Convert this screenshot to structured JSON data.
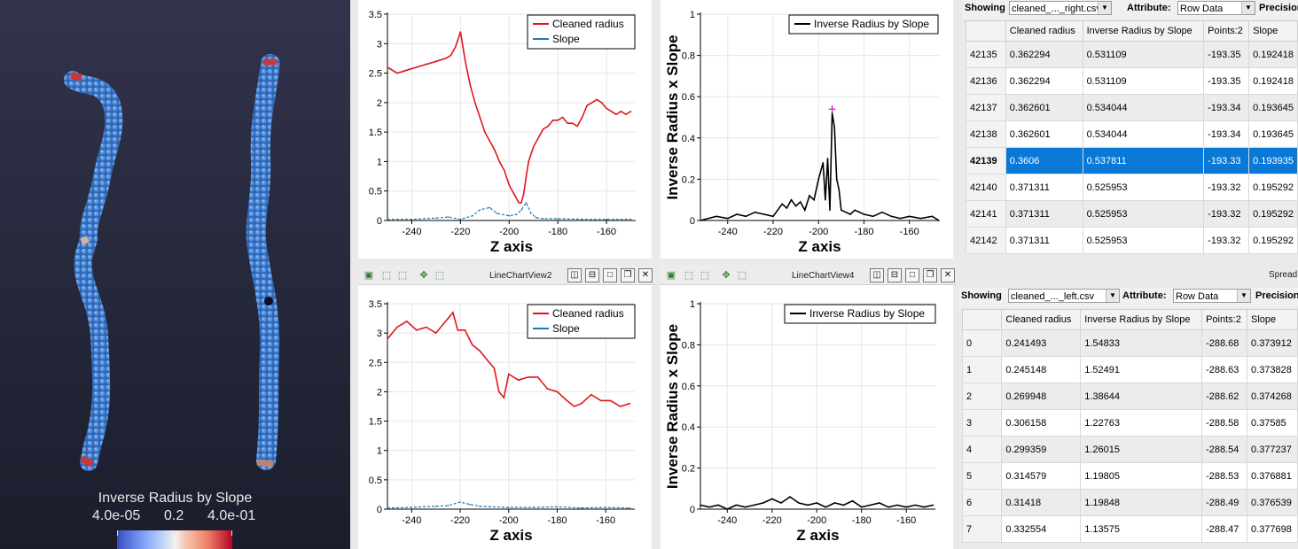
{
  "render_view": {
    "colorbar": {
      "title": "Inverse Radius by Slope",
      "ticks": [
        "4.0e-05",
        "0.2",
        "4.0e-01"
      ]
    }
  },
  "colors": {
    "red_series": "#e0161c",
    "blue_series": "#1f77b4",
    "black_series": "#000000",
    "selection": "#0a78d7",
    "marker": "#e000e0"
  },
  "toolbar_left": {
    "title": "LineChartView2"
  },
  "toolbar_right": {
    "title": "LineChartView4"
  },
  "toolbar_icons": [
    "camera-icon",
    "select-icon",
    "select-points-icon",
    "zoom-icon",
    "clear-selection-icon"
  ],
  "toolbar_buttons": [
    "split-horizontal-icon",
    "split-vertical-icon",
    "maximize-icon",
    "restore-icon",
    "close-icon"
  ],
  "spread_label": "Spread",
  "sheet_top": {
    "showing_label": "Showing",
    "file": "cleaned_..._right.csv",
    "attribute_label": "Attribute:",
    "attribute_value": "Row Data",
    "precision_label": "Precision",
    "columns": [
      "Cleaned radius",
      "Inverse Radius by Slope",
      "Points:2",
      "Slope"
    ],
    "rows": [
      {
        "id": "42135",
        "cells": [
          "0.362294",
          "0.531109",
          "-193.35",
          "0.192418"
        ]
      },
      {
        "id": "42136",
        "cells": [
          "0.362294",
          "0.531109",
          "-193.35",
          "0.192418"
        ]
      },
      {
        "id": "42137",
        "cells": [
          "0.362601",
          "0.534044",
          "-193.34",
          "0.193645"
        ]
      },
      {
        "id": "42138",
        "cells": [
          "0.362601",
          "0.534044",
          "-193.34",
          "0.193645"
        ]
      },
      {
        "id": "42139",
        "cells": [
          "0.3606",
          "0.537811",
          "-193.33",
          "0.193935"
        ]
      },
      {
        "id": "42140",
        "cells": [
          "0.371311",
          "0.525953",
          "-193.32",
          "0.195292"
        ]
      },
      {
        "id": "42141",
        "cells": [
          "0.371311",
          "0.525953",
          "-193.32",
          "0.195292"
        ]
      },
      {
        "id": "42142",
        "cells": [
          "0.371311",
          "0.525953",
          "-193.32",
          "0.195292"
        ]
      }
    ],
    "selected_row": "42139"
  },
  "sheet_bottom": {
    "showing_label": "Showing",
    "file": "cleaned_..._left.csv",
    "attribute_label": "Attribute:",
    "attribute_value": "Row Data",
    "precision_label": "Precision",
    "columns": [
      "Cleaned radius",
      "Inverse Radius by Slope",
      "Points:2",
      "Slope"
    ],
    "rows": [
      {
        "id": "0",
        "cells": [
          "0.241493",
          "1.54833",
          "-288.68",
          "0.373912"
        ]
      },
      {
        "id": "1",
        "cells": [
          "0.245148",
          "1.52491",
          "-288.63",
          "0.373828"
        ]
      },
      {
        "id": "2",
        "cells": [
          "0.269948",
          "1.38644",
          "-288.62",
          "0.374268"
        ]
      },
      {
        "id": "3",
        "cells": [
          "0.306158",
          "1.22763",
          "-288.58",
          "0.37585"
        ]
      },
      {
        "id": "4",
        "cells": [
          "0.299359",
          "1.26015",
          "-288.54",
          "0.377237"
        ]
      },
      {
        "id": "5",
        "cells": [
          "0.314579",
          "1.19805",
          "-288.53",
          "0.376881"
        ]
      },
      {
        "id": "6",
        "cells": [
          "0.31418",
          "1.19848",
          "-288.49",
          "0.376539"
        ]
      },
      {
        "id": "7",
        "cells": [
          "0.332554",
          "1.13575",
          "-288.47",
          "0.377698"
        ]
      }
    ]
  },
  "chart_data": [
    {
      "type": "line",
      "xlabel": "Z axis",
      "ylabel": "",
      "xlim": [
        -250,
        -148
      ],
      "ylim": [
        0,
        3.5
      ],
      "xticks": [
        -240,
        -220,
        -200,
        -180,
        -160
      ],
      "yticks": [
        0,
        0.5,
        1,
        1.5,
        2,
        2.5,
        3,
        3.5
      ],
      "grid": true,
      "legend": "top-right",
      "series": [
        {
          "name": "Cleaned radius",
          "color": "#e0161c",
          "x": [
            -250,
            -246,
            -242,
            -238,
            -234,
            -230,
            -226,
            -224,
            -222,
            -220,
            -218,
            -216,
            -214,
            -212,
            -210,
            -208,
            -206,
            -204,
            -202,
            -200,
            -198,
            -196,
            -195,
            -194,
            -193,
            -192,
            -190,
            -188,
            -186,
            -184,
            -182,
            -180,
            -178,
            -176,
            -174,
            -172,
            -170,
            -168,
            -166,
            -164,
            -162,
            -160,
            -158,
            -156,
            -154,
            -152,
            -150
          ],
          "y": [
            2.6,
            2.5,
            2.55,
            2.6,
            2.65,
            2.7,
            2.75,
            2.8,
            2.95,
            3.2,
            2.7,
            2.3,
            2.0,
            1.75,
            1.5,
            1.35,
            1.2,
            1.0,
            0.85,
            0.6,
            0.45,
            0.3,
            0.3,
            0.45,
            0.75,
            1.0,
            1.25,
            1.4,
            1.55,
            1.6,
            1.7,
            1.7,
            1.75,
            1.65,
            1.65,
            1.6,
            1.75,
            1.95,
            2.0,
            2.05,
            2.0,
            1.9,
            1.85,
            1.8,
            1.85,
            1.8,
            1.85
          ]
        },
        {
          "name": "Slope",
          "color": "#1f77b4",
          "x": [
            -250,
            -240,
            -230,
            -225,
            -220,
            -215,
            -212,
            -208,
            -205,
            -200,
            -197,
            -195,
            -193,
            -191,
            -189,
            -186,
            -180,
            -170,
            -160,
            -150
          ],
          "y": [
            0.02,
            0.02,
            0.04,
            0.06,
            0.02,
            0.08,
            0.18,
            0.22,
            0.12,
            0.08,
            0.1,
            0.18,
            0.3,
            0.12,
            0.05,
            0.03,
            0.03,
            0.02,
            0.02,
            0.02
          ]
        }
      ]
    },
    {
      "type": "line",
      "xlabel": "Z axis",
      "ylabel": "Inverse Radius x Slope",
      "xlim": [
        -252,
        -147
      ],
      "ylim": [
        0,
        1
      ],
      "xticks": [
        -240,
        -220,
        -200,
        -180,
        -160
      ],
      "yticks": [
        0,
        0.2,
        0.4,
        0.6,
        0.8,
        1
      ],
      "grid": true,
      "legend": "top-right",
      "series": [
        {
          "name": "Inverse Radius by Slope",
          "color": "#000000",
          "x": [
            -252,
            -245,
            -240,
            -236,
            -232,
            -228,
            -224,
            -220,
            -218,
            -216,
            -214,
            -212,
            -210,
            -208,
            -206,
            -204,
            -202,
            -200,
            -198,
            -197,
            -196,
            -195,
            -194,
            -193,
            -192,
            -191,
            -190,
            -188,
            -186,
            -184,
            -180,
            -176,
            -172,
            -168,
            -164,
            -160,
            -155,
            -150,
            -147
          ],
          "y": [
            0.0,
            0.02,
            0.01,
            0.03,
            0.02,
            0.04,
            0.03,
            0.02,
            0.05,
            0.08,
            0.06,
            0.1,
            0.07,
            0.09,
            0.05,
            0.12,
            0.1,
            0.2,
            0.28,
            0.1,
            0.3,
            0.05,
            0.52,
            0.45,
            0.2,
            0.15,
            0.05,
            0.04,
            0.03,
            0.05,
            0.03,
            0.02,
            0.04,
            0.02,
            0.01,
            0.02,
            0.01,
            0.02,
            0.0
          ]
        }
      ],
      "marker": {
        "x": -194,
        "y": 0.54
      }
    },
    {
      "type": "line",
      "xlabel": "Z axis",
      "ylabel": "",
      "xlim": [
        -250,
        -148
      ],
      "ylim": [
        0,
        3.5
      ],
      "xticks": [
        -240,
        -220,
        -200,
        -180,
        -160
      ],
      "yticks": [
        0,
        0.5,
        1,
        1.5,
        2,
        2.5,
        3,
        3.5
      ],
      "grid": true,
      "legend": "top-right",
      "series": [
        {
          "name": "Cleaned radius",
          "color": "#e0161c",
          "x": [
            -250,
            -246,
            -242,
            -238,
            -234,
            -230,
            -226,
            -223,
            -221,
            -218,
            -215,
            -212,
            -209,
            -206,
            -204,
            -202,
            -200,
            -196,
            -192,
            -188,
            -184,
            -180,
            -176,
            -173,
            -170,
            -166,
            -162,
            -158,
            -154,
            -150
          ],
          "y": [
            2.9,
            3.1,
            3.2,
            3.05,
            3.1,
            3.0,
            3.2,
            3.35,
            3.05,
            3.05,
            2.8,
            2.7,
            2.55,
            2.4,
            2.0,
            1.9,
            2.3,
            2.2,
            2.25,
            2.25,
            2.05,
            2.0,
            1.85,
            1.75,
            1.8,
            1.95,
            1.85,
            1.85,
            1.75,
            1.8
          ]
        },
        {
          "name": "Slope",
          "color": "#1f77b4",
          "x": [
            -250,
            -240,
            -230,
            -225,
            -220,
            -216,
            -212,
            -208,
            -200,
            -190,
            -180,
            -170,
            -160,
            -150
          ],
          "y": [
            0.02,
            0.03,
            0.05,
            0.06,
            0.12,
            0.08,
            0.05,
            0.04,
            0.03,
            0.03,
            0.04,
            0.02,
            0.03,
            0.02
          ]
        }
      ]
    },
    {
      "type": "line",
      "xlabel": "Z axis",
      "ylabel": "Inverse Radius x Slope",
      "xlim": [
        -252,
        -147
      ],
      "ylim": [
        0,
        1
      ],
      "xticks": [
        -240,
        -220,
        -200,
        -180,
        -160
      ],
      "yticks": [
        0,
        0.2,
        0.4,
        0.6,
        0.8,
        1
      ],
      "grid": true,
      "legend": "top-right",
      "series": [
        {
          "name": "Inverse Radius by Slope",
          "color": "#000000",
          "x": [
            -252,
            -248,
            -244,
            -240,
            -236,
            -232,
            -228,
            -224,
            -220,
            -216,
            -212,
            -208,
            -204,
            -200,
            -196,
            -192,
            -188,
            -184,
            -180,
            -176,
            -172,
            -168,
            -164,
            -160,
            -156,
            -152,
            -148
          ],
          "y": [
            0.02,
            0.01,
            0.02,
            0.0,
            0.02,
            0.01,
            0.02,
            0.03,
            0.05,
            0.03,
            0.06,
            0.03,
            0.02,
            0.03,
            0.01,
            0.03,
            0.02,
            0.04,
            0.01,
            0.02,
            0.03,
            0.01,
            0.02,
            0.01,
            0.02,
            0.01,
            0.02
          ]
        }
      ]
    }
  ]
}
